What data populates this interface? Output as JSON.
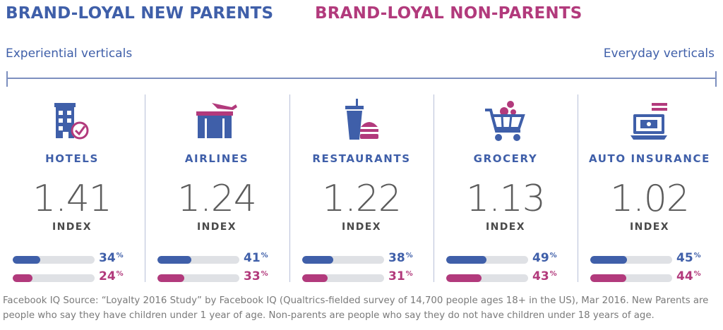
{
  "legend": {
    "parents": "BRAND-LOYAL NEW PARENTS",
    "non_parents": "BRAND-LOYAL NON-PARENTS"
  },
  "scale": {
    "left": "Experiential verticals",
    "right": "Everyday verticals"
  },
  "index_label": "INDEX",
  "percent_sign": "%",
  "colors": {
    "parents": "#3f5fa9",
    "non_parents": "#b23a7c",
    "track": "#dfe1e5",
    "index_text": "#5c5c5c"
  },
  "chart_data": {
    "type": "bar",
    "categories": [
      "HOTELS",
      "AIRLINES",
      "RESTAURANTS",
      "GROCERY",
      "AUTO INSURANCE"
    ],
    "icons": [
      "hotel-icon",
      "airline-icon",
      "restaurant-icon",
      "grocery-cart-icon",
      "auto-insurance-icon"
    ],
    "index": [
      "1.41",
      "1.24",
      "1.22",
      "1.13",
      "1.02"
    ],
    "series": [
      {
        "name": "BRAND-LOYAL NEW PARENTS",
        "values": [
          34,
          41,
          38,
          49,
          45
        ]
      },
      {
        "name": "BRAND-LOYAL NON-PARENTS",
        "values": [
          24,
          33,
          31,
          43,
          44
        ]
      }
    ],
    "ylim": [
      0,
      100
    ]
  },
  "footnote": "Facebook IQ Source: “Loyalty 2016 Study” by Facebook IQ (Qualtrics-fielded survey of 14,700 people ages 18+ in the US), Mar 2016. New Parents are people who say they have children under 1 year of age. Non-parents are people who say they do not have children under 18 years of age."
}
